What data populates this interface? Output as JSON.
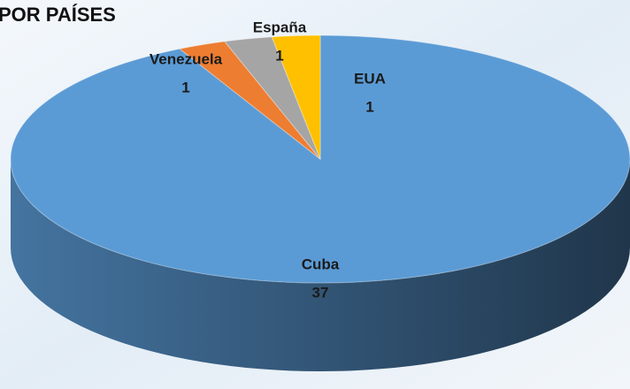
{
  "chart_data": {
    "type": "pie",
    "title": "POR PAÍSES",
    "categories": [
      "Cuba",
      "Venezuela",
      "España",
      "EUA"
    ],
    "values": [
      37,
      1,
      1,
      1
    ],
    "colors": [
      "#5b9bd5",
      "#ed7d31",
      "#a5a5a5",
      "#ffc000"
    ]
  }
}
